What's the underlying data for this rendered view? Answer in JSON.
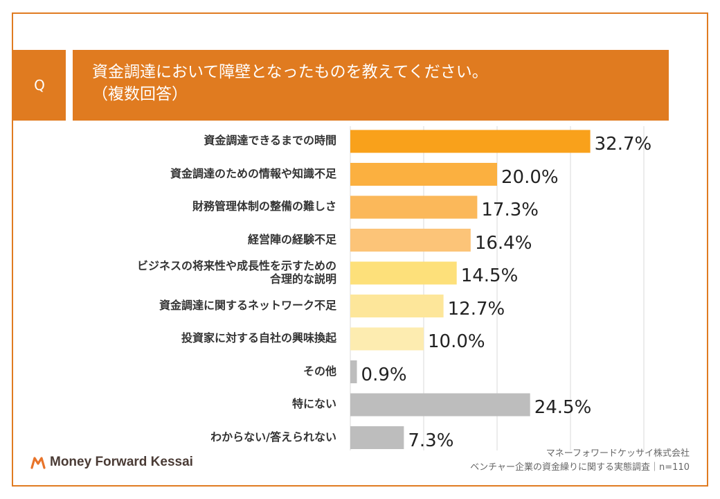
{
  "header": {
    "q_label": "Q",
    "title_line1": "資金調達において障壁となったものを教えてください。",
    "title_line2": "（複数回答）"
  },
  "chart_data": {
    "type": "bar",
    "orientation": "horizontal",
    "categories": [
      [
        "資金調達できるまでの時間"
      ],
      [
        "資金調達のための情報や知識不足"
      ],
      [
        "財務管理体制の整備の難しさ"
      ],
      [
        "経営陣の経験不足"
      ],
      [
        "ビジネスの将来性や成長性を示すための",
        "合理的な説明"
      ],
      [
        "資金調達に関するネットワーク不足"
      ],
      [
        "投資家に対する自社の興味換起"
      ],
      [
        "その他"
      ],
      [
        "特にない"
      ],
      [
        "わからない/答えられない"
      ]
    ],
    "values": [
      32.7,
      20.0,
      17.3,
      16.4,
      14.5,
      12.7,
      10.0,
      0.9,
      24.5,
      7.3
    ],
    "value_labels": [
      "32.7%",
      "20.0%",
      "17.3%",
      "16.4%",
      "14.5%",
      "12.7%",
      "10.0%",
      "0.9%",
      "24.5%",
      "7.3%"
    ],
    "colors": [
      "#f9a11b",
      "#fbb040",
      "#fbb85a",
      "#fcc478",
      "#fde07a",
      "#fde69a",
      "#fdecb0",
      "#bdbdbd",
      "#bdbdbd",
      "#bdbdbd"
    ],
    "xlim": [
      0,
      40
    ],
    "grid": true,
    "title": "資金調達において障壁となったものを教えてください。"
  },
  "footer": {
    "logo_text": "Money Forward Kessai",
    "source_line1": "マネーフォワードケッサイ株式会社",
    "source_line2": "ベンチャー企業の資金繰りに関する実態調査｜n=110"
  },
  "theme": {
    "accent": "#e07b20",
    "grid": "#d9d9d9"
  }
}
